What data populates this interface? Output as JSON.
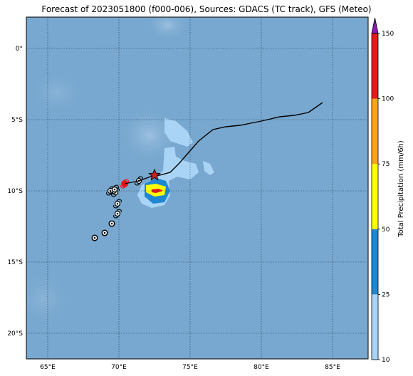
{
  "title": "Forecast of 2023051800 (f000-006), Sources: GDACS (TC track), GFS (Meteo)",
  "map": {
    "lon_range": [
      63.5,
      87.5
    ],
    "lat_range": [
      -21.8,
      2.2
    ],
    "ocean_color": "#78a8cf",
    "grid": "dotted",
    "lon_ticks": [
      {
        "value": 65,
        "label": "65°E"
      },
      {
        "value": 70,
        "label": "70°E"
      },
      {
        "value": 75,
        "label": "75°E"
      },
      {
        "value": 80,
        "label": "80°E"
      },
      {
        "value": 85,
        "label": "85°E"
      }
    ],
    "lat_ticks": [
      {
        "value": 0,
        "label": "0°"
      },
      {
        "value": -5,
        "label": "5°S"
      },
      {
        "value": -10,
        "label": "10°S"
      },
      {
        "value": -15,
        "label": "15°S"
      },
      {
        "value": -20,
        "label": "20°S"
      }
    ]
  },
  "track": {
    "color": "#000000",
    "points": [
      [
        84.3,
        -3.8
      ],
      [
        83.3,
        -4.5
      ],
      [
        82.3,
        -4.7
      ],
      [
        81.3,
        -4.8
      ],
      [
        80.0,
        -5.1
      ],
      [
        78.5,
        -5.4
      ],
      [
        77.5,
        -5.5
      ],
      [
        76.6,
        -5.7
      ],
      [
        75.6,
        -6.5
      ],
      [
        74.9,
        -7.3
      ],
      [
        74.2,
        -8.1
      ],
      [
        73.6,
        -8.7
      ],
      [
        72.5,
        -9.0
      ]
    ],
    "current_position": {
      "lon": 72.5,
      "lat": -8.9,
      "color": "#cc2222",
      "icon": "star-icon"
    },
    "forecast_positions": [
      {
        "lon": 71.4,
        "lat": -9.3,
        "icon": "cyclone-icon",
        "color": "#000000"
      },
      {
        "lon": 70.4,
        "lat": -9.5,
        "icon": "cyclone-icon",
        "color": "#ee1111"
      },
      {
        "lon": 69.7,
        "lat": -9.9,
        "icon": "cyclone-icon",
        "color": "#000000"
      },
      {
        "lon": 69.4,
        "lat": -10.0,
        "icon": "cyclone-icon",
        "color": "#000000"
      },
      {
        "lon": 69.75,
        "lat": -10.1,
        "icon": "cyclone-icon",
        "color": "#000000"
      },
      {
        "lon": 69.9,
        "lat": -10.9,
        "icon": "cyclone-icon",
        "color": "#000000"
      },
      {
        "lon": 69.9,
        "lat": -11.6,
        "icon": "cyclone-icon",
        "color": "#000000"
      },
      {
        "lon": 69.5,
        "lat": -12.3,
        "icon": "circle-icon",
        "color": "#000000"
      },
      {
        "lon": 69.0,
        "lat": -12.95,
        "icon": "circle-icon",
        "color": "#000000"
      },
      {
        "lon": 68.3,
        "lat": -13.3,
        "icon": "circle-icon",
        "color": "#000000"
      }
    ]
  },
  "precipitation": {
    "levels": [
      {
        "value": 10,
        "color": "#aad4f5"
      },
      {
        "value": 25,
        "color": "#1f88d2"
      },
      {
        "value": 50,
        "color": "#ffff00"
      },
      {
        "value": 75,
        "color": "#f9a41b"
      },
      {
        "value": 100,
        "color": "#e31a1c"
      },
      {
        "value": 150,
        "color": "#8d18b2"
      }
    ],
    "areas": [
      {
        "level": 10,
        "polygon": [
          [
            73.2,
            -4.9
          ],
          [
            74.0,
            -5.1
          ],
          [
            74.8,
            -5.8
          ],
          [
            75.2,
            -6.6
          ],
          [
            74.8,
            -6.9
          ],
          [
            74.2,
            -6.7
          ],
          [
            73.6,
            -6.5
          ],
          [
            73.2,
            -5.9
          ]
        ]
      },
      {
        "level": 10,
        "polygon": [
          [
            73.2,
            -7.0
          ],
          [
            73.9,
            -6.9
          ],
          [
            74.0,
            -7.6
          ],
          [
            74.6,
            -7.9
          ],
          [
            75.4,
            -8.1
          ],
          [
            75.6,
            -8.7
          ],
          [
            75.0,
            -9.2
          ],
          [
            74.1,
            -9.0
          ],
          [
            73.5,
            -9.3
          ],
          [
            73.6,
            -10.3
          ],
          [
            73.2,
            -11.0
          ],
          [
            72.3,
            -11.2
          ],
          [
            71.6,
            -10.9
          ],
          [
            71.3,
            -10.3
          ],
          [
            71.6,
            -9.6
          ],
          [
            72.3,
            -9.2
          ],
          [
            73.1,
            -8.6
          ]
        ]
      },
      {
        "level": 10,
        "polygon": [
          [
            75.9,
            -7.9
          ],
          [
            76.4,
            -8.1
          ],
          [
            76.7,
            -8.7
          ],
          [
            76.4,
            -8.9
          ],
          [
            76.0,
            -8.6
          ]
        ]
      },
      {
        "level": 25,
        "polygon": [
          [
            71.8,
            -9.5
          ],
          [
            72.6,
            -9.1
          ],
          [
            73.3,
            -9.3
          ],
          [
            73.6,
            -10.0
          ],
          [
            73.2,
            -10.8
          ],
          [
            72.4,
            -10.9
          ],
          [
            71.8,
            -10.4
          ]
        ]
      },
      {
        "level": 50,
        "polygon": [
          [
            71.9,
            -9.6
          ],
          [
            72.6,
            -9.5
          ],
          [
            73.3,
            -9.7
          ],
          [
            73.2,
            -10.3
          ],
          [
            72.5,
            -10.4
          ],
          [
            71.9,
            -10.1
          ]
        ]
      },
      {
        "level": 100,
        "polygon": [
          [
            72.3,
            -9.9
          ],
          [
            72.8,
            -9.85
          ],
          [
            73.1,
            -10.0
          ],
          [
            72.6,
            -10.15
          ],
          [
            72.3,
            -10.1
          ]
        ]
      }
    ]
  },
  "colorbar": {
    "label": "Total Precipitation (mm/6h)",
    "ticks": [
      {
        "value": 10,
        "label": "10"
      },
      {
        "value": 25,
        "label": "25"
      },
      {
        "value": 50,
        "label": "50"
      },
      {
        "value": 75,
        "label": "75"
      },
      {
        "value": 100,
        "label": "100"
      },
      {
        "value": 150,
        "label": "150"
      }
    ],
    "bands": [
      {
        "from": 10,
        "to": 25,
        "color": "#aad4f5"
      },
      {
        "from": 25,
        "to": 50,
        "color": "#1f88d2"
      },
      {
        "from": 50,
        "to": 75,
        "color": "#ffff00"
      },
      {
        "from": 75,
        "to": 100,
        "color": "#f9a41b"
      },
      {
        "from": 100,
        "to": 150,
        "color": "#e31a1c"
      }
    ],
    "extend_color": "#8d18b2"
  }
}
